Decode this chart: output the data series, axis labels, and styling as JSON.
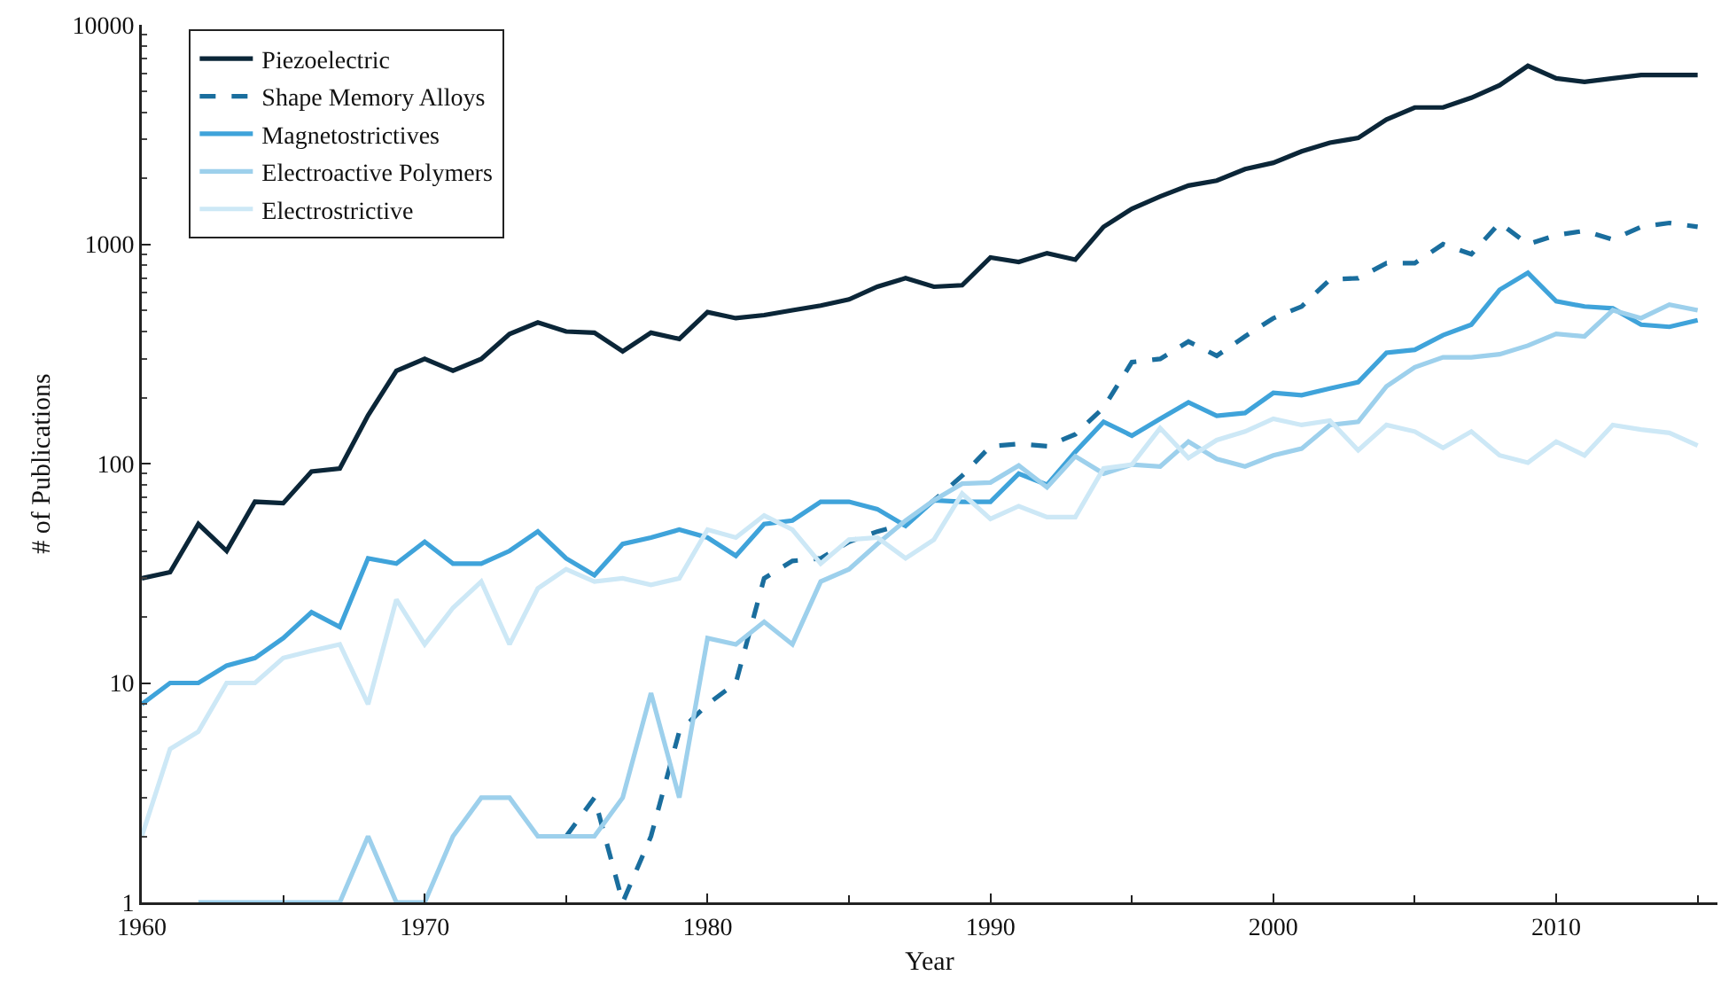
{
  "chart_data": {
    "type": "line",
    "xlabel": "Year",
    "ylabel": "# of Publications",
    "log": "y",
    "grid": false,
    "legend": "top left",
    "marker": "none",
    "x": [
      1960,
      1961,
      1962,
      1963,
      1964,
      1965,
      1966,
      1967,
      1968,
      1969,
      1970,
      1971,
      1972,
      1973,
      1974,
      1975,
      1976,
      1977,
      1978,
      1979,
      1980,
      1981,
      1982,
      1983,
      1984,
      1985,
      1986,
      1987,
      1988,
      1989,
      1990,
      1991,
      1992,
      1993,
      1994,
      1995,
      1996,
      1997,
      1998,
      1999,
      2000,
      2001,
      2002,
      2003,
      2004,
      2005,
      2006,
      2007,
      2008,
      2009,
      2010,
      2011,
      2012,
      2013,
      2014,
      2015
    ],
    "xlim": [
      1960,
      2015.7
    ],
    "xticks": [
      1960,
      1970,
      1980,
      1990,
      2000,
      2010
    ],
    "ylim": [
      1,
      10000
    ],
    "yticks": [
      1,
      10,
      100,
      1000,
      10000
    ],
    "series": [
      {
        "name": "Piezoelectric",
        "color": "#0b2638",
        "line_style": "solid",
        "values": [
          30,
          32,
          53,
          40,
          67,
          66,
          92,
          95,
          166,
          265,
          300,
          265,
          300,
          390,
          440,
          400,
          395,
          325,
          395,
          370,
          490,
          460,
          475,
          500,
          525,
          560,
          640,
          700,
          640,
          650,
          870,
          830,
          910,
          850,
          1200,
          1450,
          1650,
          1850,
          1950,
          2200,
          2350,
          2650,
          2900,
          3050,
          3700,
          4200,
          4200,
          4650,
          5300,
          6500,
          5700,
          5500,
          5700,
          5900,
          5900,
          5900
        ]
      },
      {
        "name": "Shape Memory Alloys",
        "color": "#1a6e9e",
        "line_style": "dashed",
        "values": [
          null,
          null,
          null,
          null,
          null,
          null,
          null,
          null,
          null,
          null,
          null,
          null,
          null,
          null,
          null,
          2,
          3,
          1,
          2,
          6,
          8,
          10,
          30,
          36,
          37,
          44,
          49,
          53,
          68,
          88,
          120,
          123,
          120,
          136,
          180,
          290,
          300,
          360,
          310,
          380,
          460,
          520,
          690,
          700,
          820,
          820,
          1000,
          900,
          1250,
          1000,
          1100,
          1150,
          1050,
          1200,
          1250,
          1200
        ]
      },
      {
        "name": "Magnetostrictives",
        "color": "#3fa3da",
        "line_style": "solid",
        "values": [
          8,
          10,
          10,
          12,
          13,
          16,
          21,
          18,
          37,
          35,
          44,
          35,
          35,
          40,
          49,
          37,
          31,
          43,
          46,
          50,
          46,
          38,
          53,
          55,
          67,
          67,
          62,
          52,
          68,
          67,
          67,
          90,
          80,
          113,
          155,
          134,
          160,
          190,
          165,
          170,
          210,
          205,
          220,
          235,
          320,
          330,
          385,
          430,
          620,
          740,
          550,
          520,
          510,
          430,
          420,
          450
        ]
      },
      {
        "name": "Electroactive Polymers",
        "color": "#9dd0ec",
        "line_style": "solid",
        "values": [
          null,
          null,
          1,
          1,
          1,
          1,
          1,
          1,
          2,
          1,
          1,
          2,
          3,
          3,
          2,
          2,
          2,
          3,
          9,
          3,
          16,
          15,
          19,
          15,
          29,
          33,
          43,
          55,
          68,
          81,
          82,
          98,
          78,
          108,
          90,
          99,
          97,
          126,
          105,
          97,
          109,
          117,
          150,
          155,
          225,
          275,
          305,
          305,
          315,
          345,
          390,
          380,
          500,
          460,
          530,
          500
        ]
      },
      {
        "name": "Electrostrictive",
        "color": "#cde8f6",
        "line_style": "solid",
        "values": [
          2,
          5,
          6,
          10,
          10,
          13,
          14,
          15,
          8,
          24,
          15,
          22,
          29,
          15,
          27,
          33,
          29,
          30,
          28,
          30,
          50,
          46,
          58,
          50,
          35,
          45,
          46,
          37,
          45,
          73,
          56,
          64,
          57,
          57,
          95,
          99,
          145,
          106,
          128,
          140,
          160,
          150,
          157,
          115,
          150,
          140,
          118,
          140,
          109,
          101,
          126,
          109,
          150,
          143,
          138,
          121
        ]
      }
    ]
  }
}
